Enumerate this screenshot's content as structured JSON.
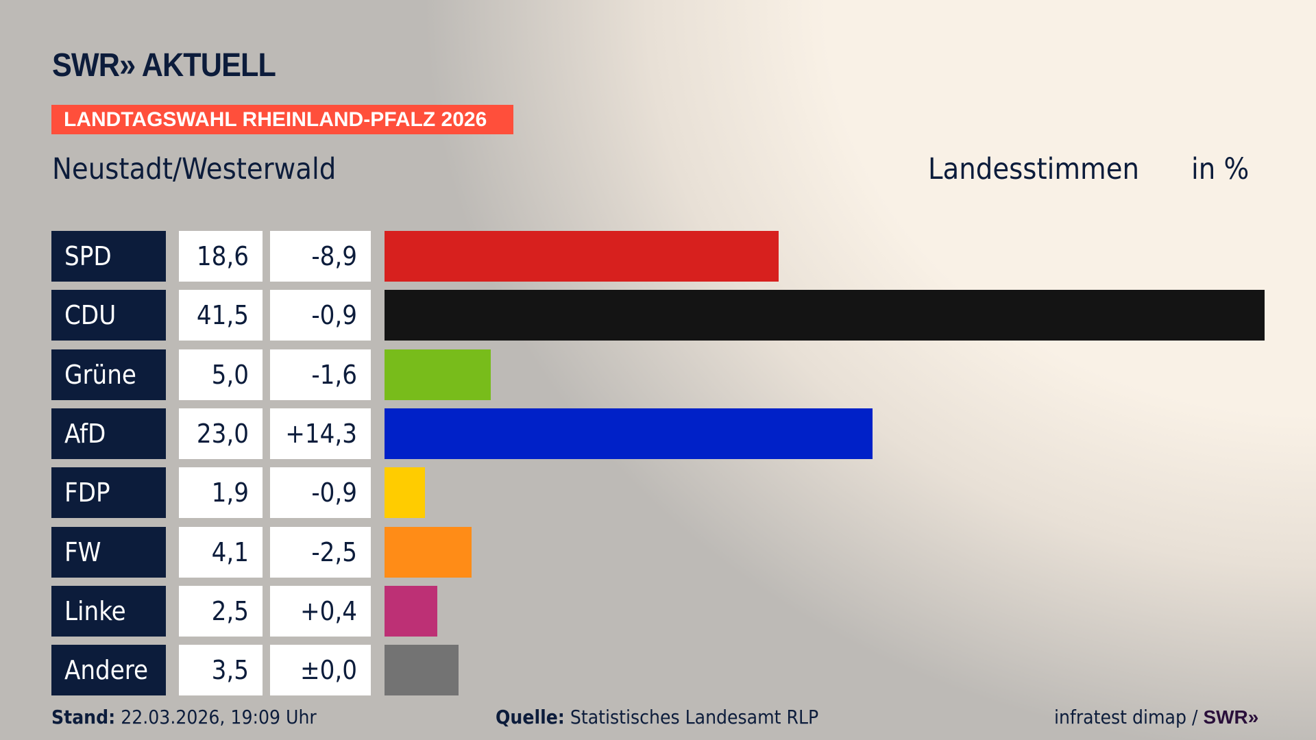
{
  "header": {
    "logo": "SWR» AKTUELL",
    "banner": "LANDTAGSWAHL RHEINLAND-PFALZ 2026",
    "region": "Neustadt/Westerwald",
    "vote_type": "Landesstimmen",
    "unit": "in %"
  },
  "chart_data": {
    "type": "bar",
    "orientation": "horizontal",
    "categories": [
      "SPD",
      "CDU",
      "Grüne",
      "AfD",
      "FDP",
      "FW",
      "Linke",
      "Andere"
    ],
    "values": [
      18.6,
      41.5,
      5.0,
      23.0,
      1.9,
      4.1,
      2.5,
      3.5
    ],
    "value_labels": [
      "18,6",
      "41,5",
      "5,0",
      "23,0",
      "1,9",
      "4,1",
      "2,5",
      "3,5"
    ],
    "changes": [
      "-8,9",
      "-0,9",
      "-1,6",
      "+14,3",
      "-0,9",
      "-2,5",
      "+0,4",
      "±0,0"
    ],
    "colors": [
      "#d7201e",
      "#141414",
      "#78bc1b",
      "#0021c8",
      "#ffcc00",
      "#ff8c17",
      "#bd3075",
      "#737373"
    ],
    "xlim": [
      0,
      41.5
    ],
    "grid": false
  },
  "footer": {
    "stand_label": "Stand:",
    "stand_value": "22.03.2026, 19:09 Uhr",
    "source_label": "Quelle:",
    "source_value": "Statistisches Landesamt RLP",
    "credit": "infratest dimap /",
    "credit_logo": "SWR»"
  }
}
